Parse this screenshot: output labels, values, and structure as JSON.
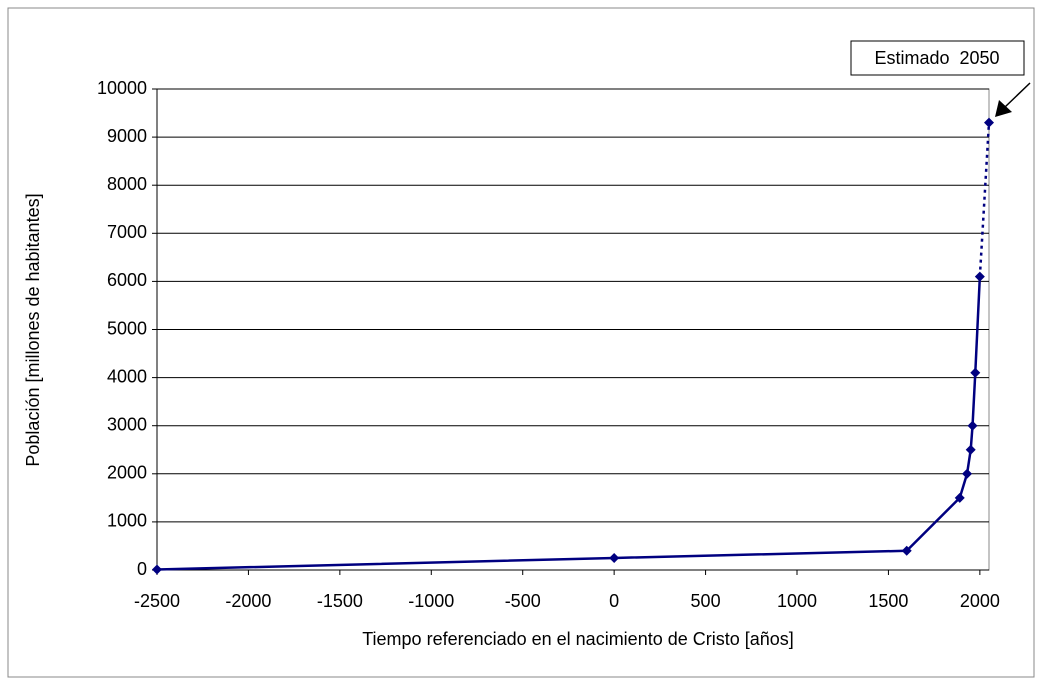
{
  "chart_data": {
    "type": "line",
    "x_label": "Tiempo referenciado en el nacimiento de Cristo [años]",
    "y_label": "Población [millones de habitantes]",
    "annotation": "Estimado  2050",
    "x": [
      -2500,
      0,
      1600,
      1890,
      1930,
      1950,
      1960,
      1975,
      2000,
      2050
    ],
    "values": [
      10,
      250,
      400,
      1500,
      2000,
      2500,
      3000,
      4100,
      6100,
      9300
    ],
    "color": "#000080",
    "dotted_last_segment": true,
    "xlim": [
      -2500,
      2050
    ],
    "xticks": [
      -2500,
      -2000,
      -1500,
      -1000,
      -500,
      0,
      500,
      1000,
      1500,
      2000
    ],
    "ylim": [
      0,
      10000
    ],
    "yticks": [
      0,
      1000,
      2000,
      3000,
      4000,
      5000,
      6000,
      7000,
      8000,
      9000,
      10000
    ],
    "grid": true
  }
}
